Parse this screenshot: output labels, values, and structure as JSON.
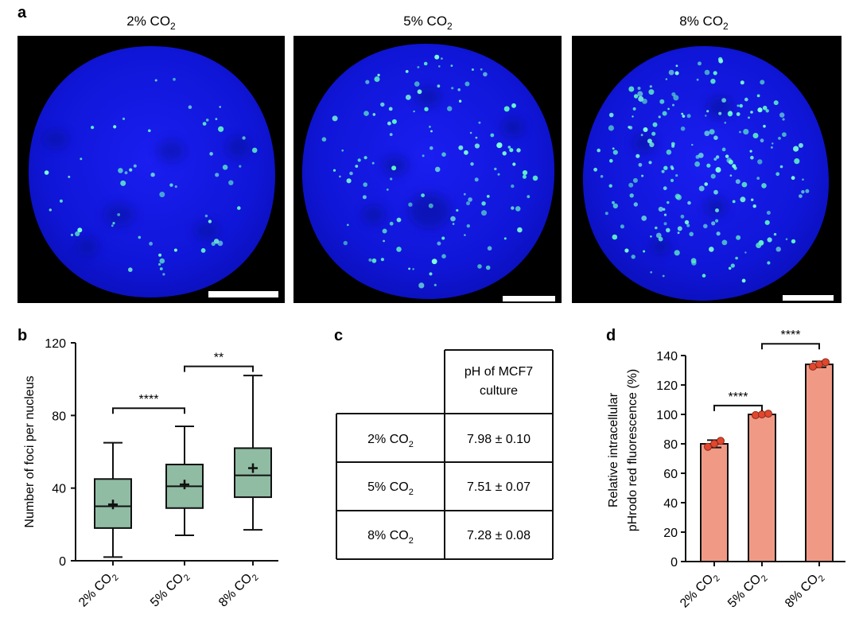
{
  "figure": {
    "panel_labels": {
      "a": "a",
      "b": "b",
      "c": "c",
      "d": "d"
    },
    "conditions": [
      {
        "base": "2% CO",
        "sub": "2"
      },
      {
        "base": "5% CO",
        "sub": "2"
      },
      {
        "base": "8% CO",
        "sub": "2"
      }
    ],
    "panel_a": {
      "titles": [
        "2% CO",
        "5% CO",
        "8% CO"
      ],
      "title_sub": "2"
    },
    "table": {
      "header": "pH of MCF7 culture",
      "header_lines": [
        "pH of MCF7",
        "culture"
      ],
      "rows": [
        {
          "condition": "2% CO",
          "sub": "2",
          "value": "7.98 ± 0.10"
        },
        {
          "condition": "5% CO",
          "sub": "2",
          "value": "7.51 ± 0.07"
        },
        {
          "condition": "8% CO",
          "sub": "2",
          "value": "7.28 ± 0.08"
        }
      ]
    }
  },
  "chart_data": [
    {
      "panel": "b",
      "type": "box",
      "ylabel": "Number of foci per nucleus",
      "ylim": [
        0,
        120
      ],
      "yticks": [
        0,
        40,
        80,
        120
      ],
      "categories": [
        "2% CO2",
        "5% CO2",
        "8% CO2"
      ],
      "boxes": [
        {
          "min": 2,
          "q1": 18,
          "median": 30,
          "q3": 45,
          "max": 65,
          "mean": 31
        },
        {
          "min": 14,
          "q1": 29,
          "median": 41,
          "q3": 53,
          "max": 74,
          "mean": 42
        },
        {
          "min": 17,
          "q1": 35,
          "median": 47,
          "q3": 62,
          "max": 102,
          "mean": 51
        }
      ],
      "significance": [
        {
          "from": 0,
          "to": 1,
          "y": 84,
          "label": "****"
        },
        {
          "from": 1,
          "to": 2,
          "y": 107,
          "label": "**"
        }
      ],
      "color": "#8fbca3"
    },
    {
      "panel": "d",
      "type": "bar",
      "ylabel_lines": [
        "Relative intracellular",
        "pHrodo red fluorescence (%)"
      ],
      "ylim": [
        0,
        140
      ],
      "yticks": [
        0,
        20,
        40,
        60,
        80,
        100,
        120,
        140
      ],
      "categories": [
        "2% CO2",
        "5% CO2",
        "8% CO2"
      ],
      "values": [
        80,
        100,
        134
      ],
      "errors": [
        2.5,
        0.5,
        2
      ],
      "points": [
        [
          78,
          80,
          82
        ],
        [
          99.5,
          100,
          100.5
        ],
        [
          132.5,
          134,
          135.5
        ]
      ],
      "significance": [
        {
          "from": 0,
          "to": 1,
          "y": 106,
          "label": "****"
        },
        {
          "from": 1,
          "to": 2,
          "y": 148,
          "label": "****"
        }
      ],
      "bar_color": "#f09a86",
      "point_color": "#e0472e"
    }
  ]
}
